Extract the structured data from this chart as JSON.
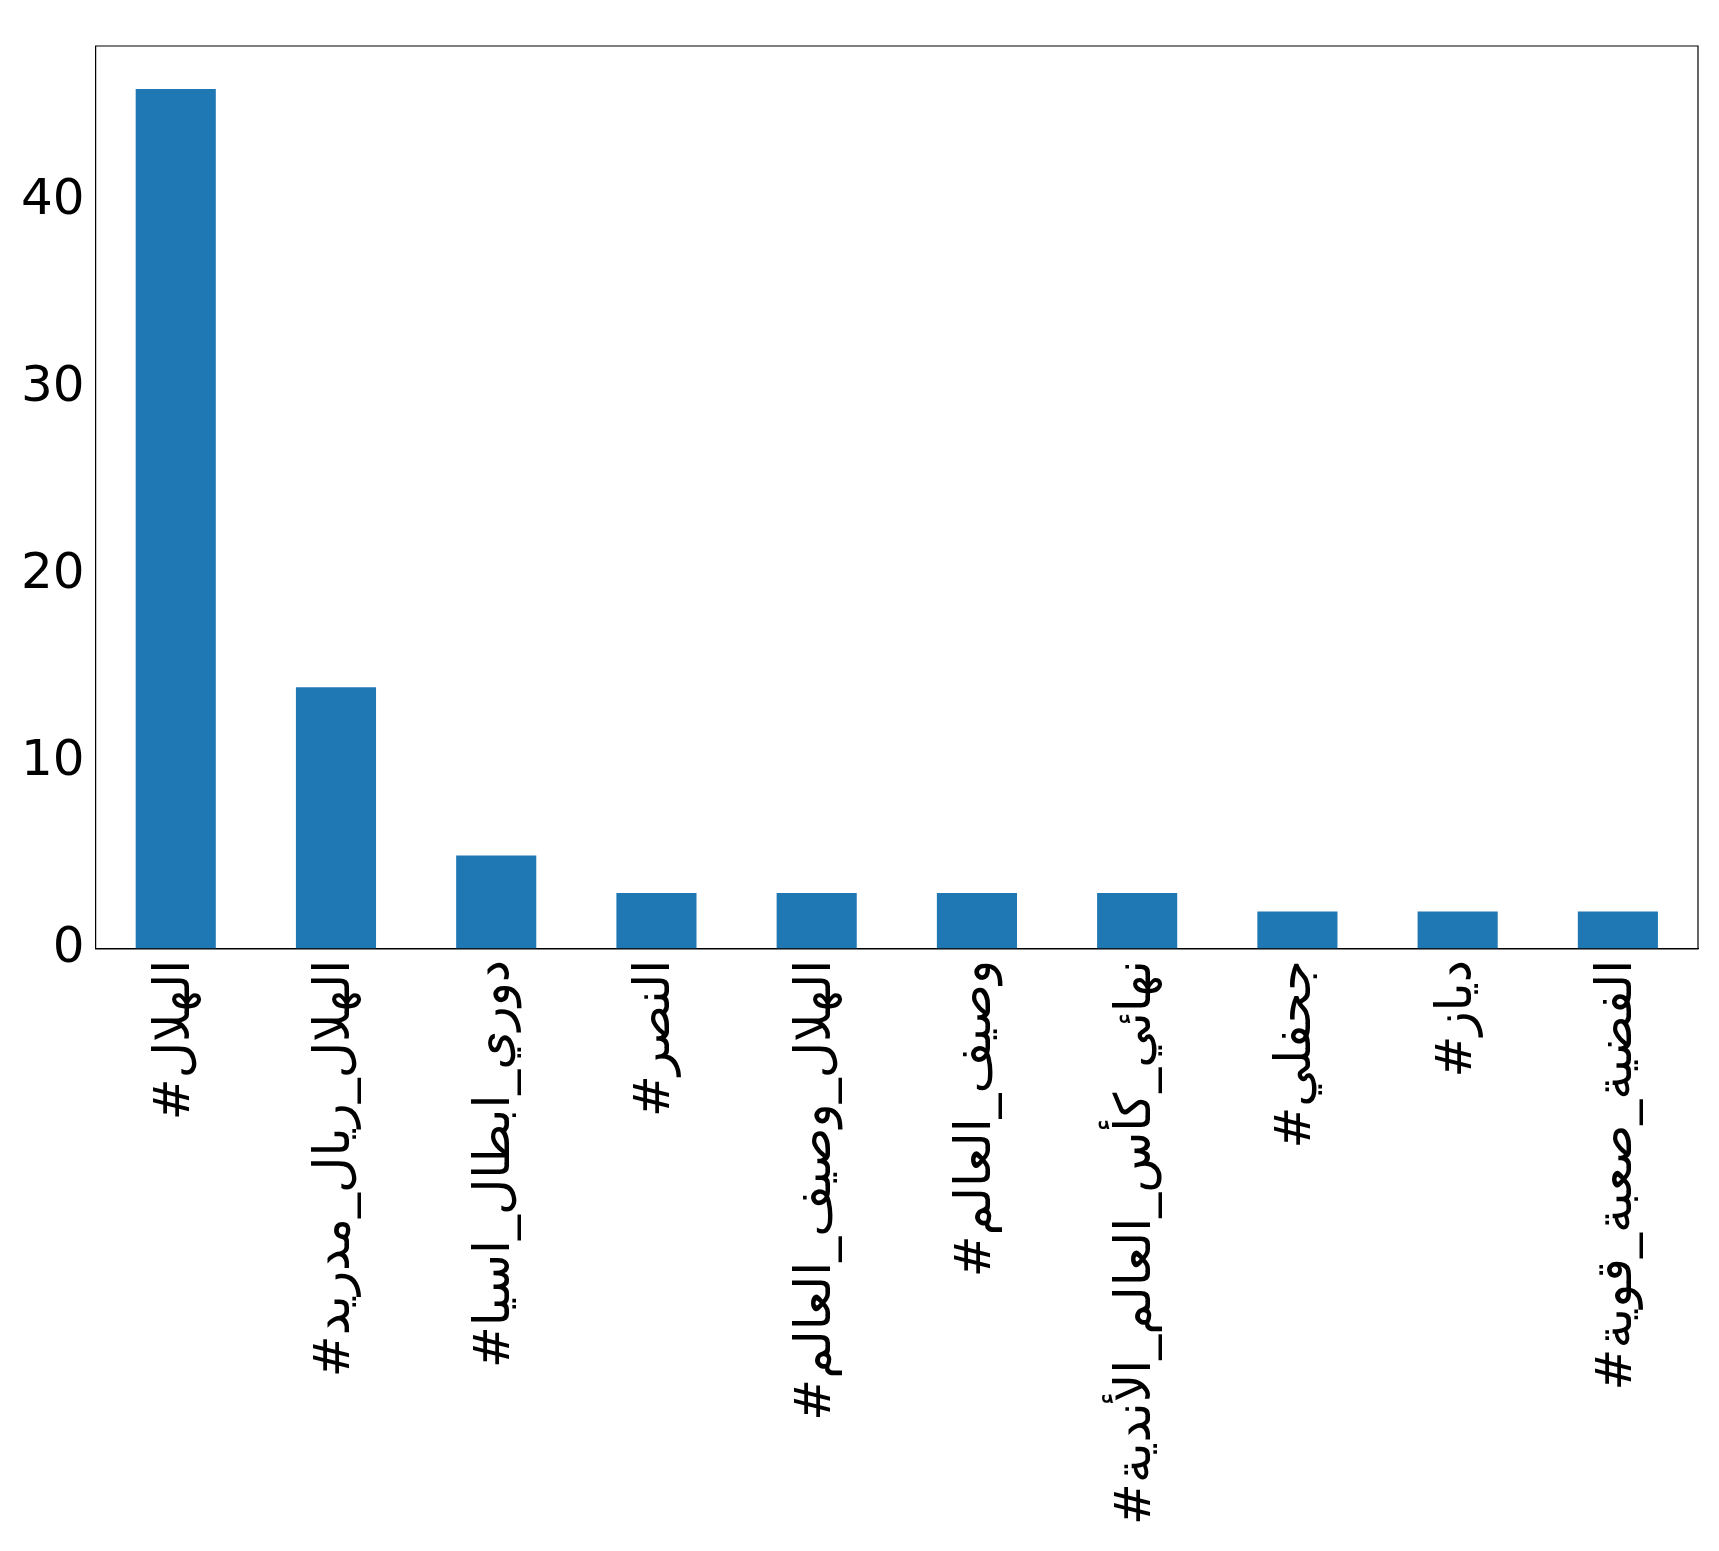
{
  "chart_data": {
    "type": "bar",
    "categories": [
      "#الهلال",
      "#الهلال_ريال_مدريد",
      "#دوري_ابطال_اسيا",
      "#النصر",
      "#الهلال_وصيف_العالم",
      "#وصيف_العالم",
      "#نهائي_كأس_العالم_الأندية",
      "#جحفلي",
      "#دياز",
      "#الفضية_صعبة_قوية"
    ],
    "values": [
      46,
      14,
      5,
      3,
      3,
      3,
      3,
      2,
      2,
      2
    ],
    "color": "#1f77b4",
    "ylim": [
      0,
      48.3
    ],
    "yticks": [
      0,
      10,
      20,
      30,
      40
    ],
    "grid": false,
    "legend": false
  }
}
